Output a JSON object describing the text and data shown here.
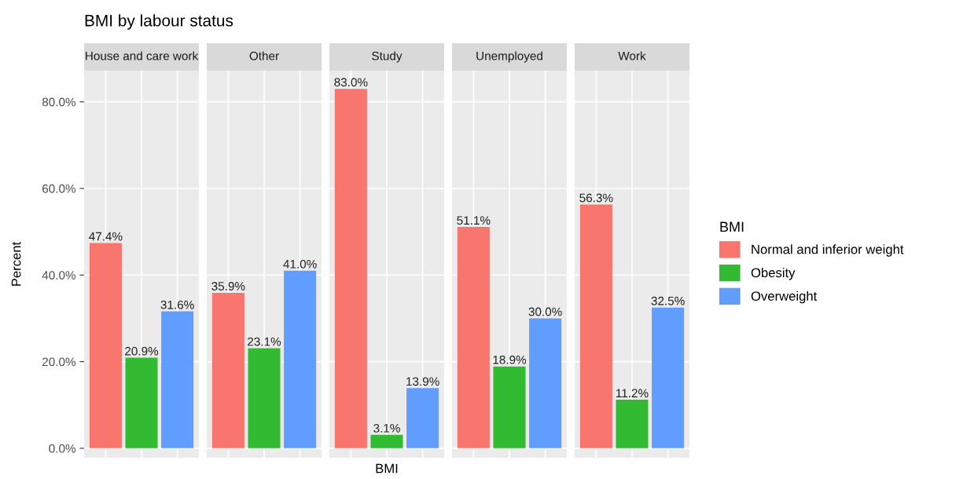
{
  "chart_data": {
    "type": "bar",
    "title": "BMI by labour status",
    "xlabel": "BMI",
    "ylabel": "Percent",
    "legend_title": "BMI",
    "legend": "right",
    "categories": [
      "House and care work",
      "Other",
      "Study",
      "Unemployed",
      "Work"
    ],
    "series": [
      {
        "name": "Normal and inferior weight",
        "color": "#f8766d",
        "values": [
          47.4,
          35.9,
          83.0,
          51.1,
          56.3
        ],
        "value_labels": [
          "47.4%",
          "35.9%",
          "83.0%",
          "51.1%",
          "56.3%"
        ]
      },
      {
        "name": "Obesity",
        "color": "#33ba33",
        "values": [
          20.9,
          23.1,
          3.1,
          18.9,
          11.2
        ],
        "value_labels": [
          "20.9%",
          "23.1%",
          "3.1%",
          "18.9%",
          "11.2%"
        ]
      },
      {
        "name": "Overweight",
        "color": "#619cff",
        "values": [
          31.6,
          41.0,
          13.9,
          30.0,
          32.5
        ],
        "value_labels": [
          "31.6%",
          "41.0%",
          "13.9%",
          "30.0%",
          "32.5%"
        ]
      }
    ],
    "ylim": [
      -2.2,
      87.2
    ],
    "yticks": [
      {
        "value": 0,
        "label": "0.0%"
      },
      {
        "value": 20,
        "label": "20.0%"
      },
      {
        "value": 40,
        "label": "40.0%"
      },
      {
        "value": 60,
        "label": "60.0%"
      },
      {
        "value": 80,
        "label": "80.0%"
      }
    ],
    "tick_labels": "y",
    "grid": true
  }
}
